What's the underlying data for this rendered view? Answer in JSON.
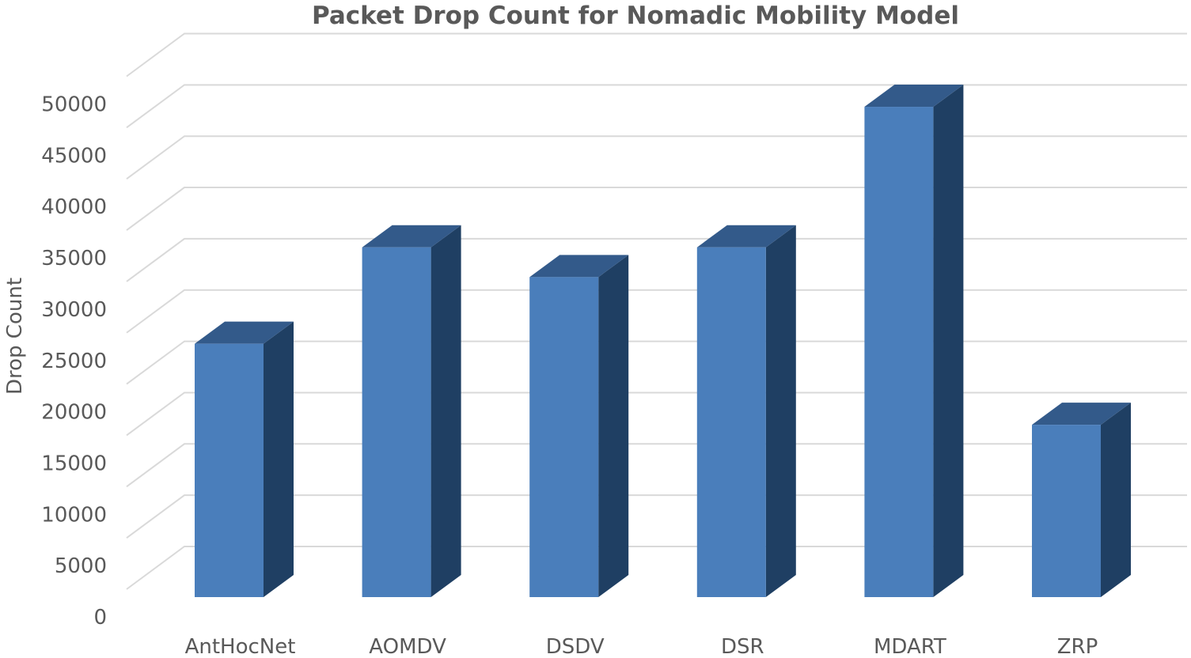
{
  "chart_data": {
    "type": "bar",
    "title": "Packet Drop Count for Nomadic Mobility Model",
    "xlabel": "",
    "ylabel": "Drop Count",
    "categories": [
      "AntHocNet",
      "AOMDV",
      "DSDV",
      "DSR",
      "MDART",
      "ZRP"
    ],
    "values": [
      24700,
      34100,
      31200,
      34100,
      47800,
      16800
    ],
    "ylim": [
      0,
      50000
    ],
    "yticks": [
      0,
      5000,
      10000,
      15000,
      20000,
      25000,
      30000,
      35000,
      40000,
      45000,
      50000
    ],
    "grid": true,
    "legend": "none",
    "three_d": true,
    "colors": {
      "front": "#4a7ebb",
      "side": "#1f3f63",
      "top": "#335a8a",
      "grid": "#d9d9d9",
      "text": "#595959"
    }
  }
}
